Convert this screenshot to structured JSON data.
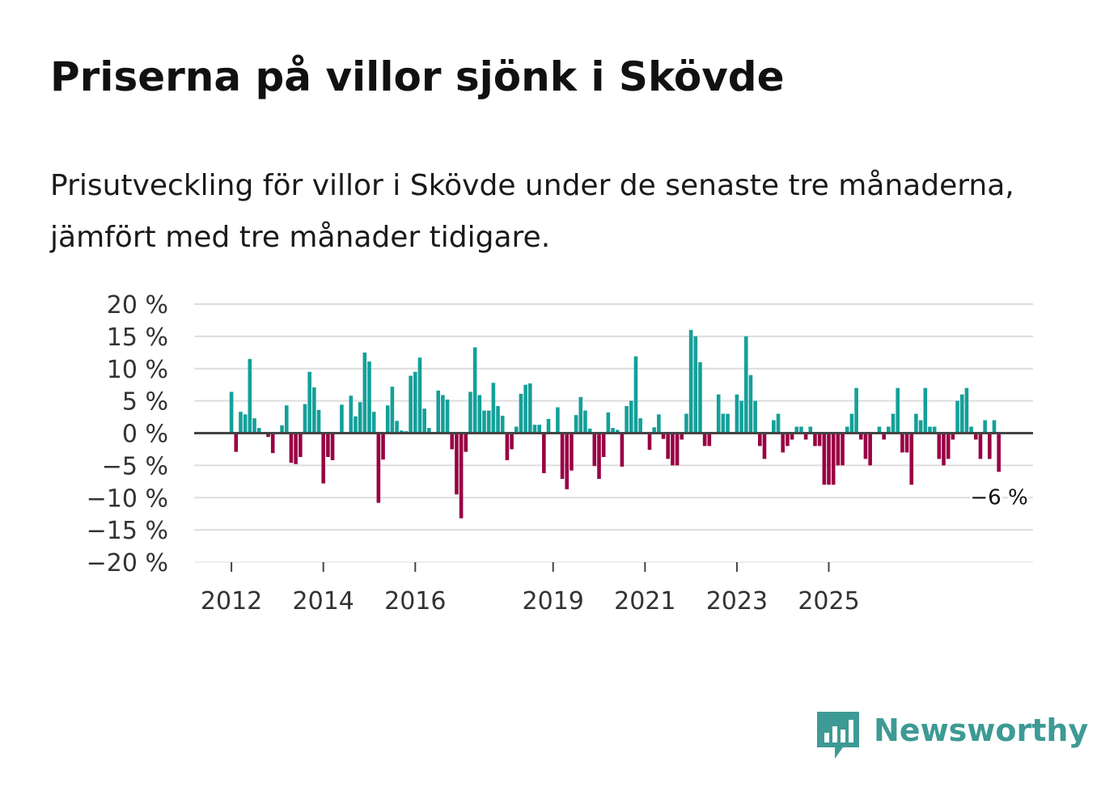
{
  "title": "Priserna på villor sjönk i Skövde",
  "subtitle": "Prisutveckling för villor i Skövde under de senaste tre månaderna, jämfört med tre månader tidigare.",
  "brand": {
    "name": "Newsworthy",
    "icon": "newsworthy-logo-icon",
    "color": "#3d9a94"
  },
  "colors": {
    "positive": "#14a099",
    "negative": "#990044",
    "grid": "#dddddd",
    "zero": "#444444"
  },
  "chart_data": {
    "type": "bar",
    "title": "Priserna på villor sjönk i Skövde",
    "xlabel": "",
    "ylabel": "",
    "ylim": [
      -20,
      20
    ],
    "y_ticks": [
      {
        "value": 20,
        "label": "20 %"
      },
      {
        "value": 15,
        "label": "15 %"
      },
      {
        "value": 10,
        "label": "10 %"
      },
      {
        "value": 5,
        "label": "5 %"
      },
      {
        "value": 0,
        "label": "0 %"
      },
      {
        "value": -5,
        "label": "−5 %"
      },
      {
        "value": -10,
        "label": "−10 %"
      },
      {
        "value": -15,
        "label": "−15 %"
      },
      {
        "value": -20,
        "label": "−20 %"
      }
    ],
    "x_ticks": [
      {
        "index": 0,
        "label": "2012"
      },
      {
        "index": 20,
        "label": "2014"
      },
      {
        "index": 40,
        "label": "2016"
      },
      {
        "index": 70,
        "label": "2019"
      },
      {
        "index": 90,
        "label": "2021"
      },
      {
        "index": 110,
        "label": "2023"
      },
      {
        "index": 130,
        "label": "2025"
      }
    ],
    "last_value_label": "−6 %",
    "values": [
      6.4,
      -2.9,
      3.3,
      2.9,
      11.5,
      2.3,
      0.8,
      0,
      -0.6,
      -3.1,
      0,
      1.2,
      4.3,
      -4.6,
      -4.8,
      -3.7,
      4.5,
      9.5,
      7.1,
      3.6,
      -7.8,
      -3.7,
      -4.2,
      0,
      4.4,
      0,
      5.8,
      2.6,
      4.8,
      12.5,
      11.1,
      3.3,
      -10.8,
      -4.1,
      4.3,
      7.2,
      1.9,
      0.4,
      0.3,
      8.9,
      9.5,
      11.7,
      3.8,
      0.8,
      0,
      6.6,
      5.9,
      5.2,
      -2.5,
      -9.5,
      -13.2,
      -2.9,
      6.4,
      13.3,
      5.9,
      3.5,
      3.5,
      7.8,
      4.2,
      2.7,
      -4.2,
      -2.5,
      1.0,
      6.1,
      7.5,
      7.7,
      1.3,
      1.3,
      -6.2,
      2.2,
      0,
      4.0,
      -7.1,
      -8.7,
      -5.8,
      2.8,
      5.6,
      3.5,
      0.7,
      -5.1,
      -7.1,
      -3.7,
      3.2,
      0.8,
      0.5,
      -5.2,
      4.2,
      5.0,
      11.9,
      2.3,
      0,
      -2.6,
      0.9,
      2.9,
      -0.9,
      -4.0,
      -5.0,
      -5.0,
      -1.0,
      3.0,
      16.0,
      15.0,
      11.0,
      -2.0,
      -2.0,
      0,
      6.0,
      3.0,
      3.0,
      0,
      6.0,
      5.0,
      15.0,
      9.0,
      5.0,
      -2.0,
      -4.0,
      0,
      2.0,
      3.0,
      -3.0,
      -2.0,
      -1.0,
      1.0,
      1.0,
      -1.0,
      1.0,
      -2.0,
      -2.0,
      -8.0,
      -8.0,
      -8.0,
      -5.0,
      -5.0,
      1.0,
      3.0,
      7.0,
      -1.0,
      -4.0,
      -5.0,
      0,
      1.0,
      -1.0,
      1.0,
      3.0,
      7.0,
      -3.0,
      -3.0,
      -8.0,
      3.0,
      2.0,
      7.0,
      1.0,
      1.0,
      -4.0,
      -5.0,
      -4.0,
      -1.0,
      5.0,
      6.0,
      7.0,
      1.0,
      -1.0,
      -4.0,
      2.0,
      -4.0,
      2.0,
      -6.0
    ]
  }
}
